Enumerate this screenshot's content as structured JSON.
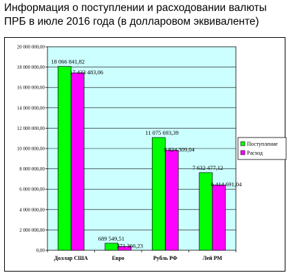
{
  "title_line1": "Информация о поступлении и расходовании валюты",
  "title_line2": "ПРБ в июле 2016 года (в долларовом эквиваленте)",
  "chart_data": {
    "type": "bar",
    "title": "Информация о поступлении и расходовании валюты ПРБ в июле 2016 года (в долларовом эквиваленте)",
    "categories": [
      "Доллар США",
      "Евро",
      "Рубль РФ",
      "Лей РМ"
    ],
    "series": [
      {
        "name": "Поступление",
        "color": "#00ff00",
        "values": [
          18066841.82,
          689549.51,
          11075693.39,
          7632477.12
        ],
        "labels": [
          "18 066 841,82",
          "689 549,51",
          "11 075 693,39",
          "7 632 477,12"
        ]
      },
      {
        "name": "Расход",
        "color": "#ff00ff",
        "values": [
          17433483.06,
          371366.23,
          9824309.04,
          6414691.04
        ],
        "labels": [
          "17 433 483,06",
          "371 366,23",
          "9 824 309,04",
          "6 414 691,04"
        ]
      }
    ],
    "ylim": [
      0,
      20000000
    ],
    "yticks": [
      0,
      2000000,
      4000000,
      6000000,
      8000000,
      10000000,
      12000000,
      14000000,
      16000000,
      18000000,
      20000000
    ],
    "ytick_labels": [
      "0,00",
      "2 000 000,00",
      "4 000 000,00",
      "6 000 000,00",
      "8 000 000,00",
      "10 000 000,00",
      "12 000 000,00",
      "14 000 000,00",
      "16 000 000,00",
      "18 000 000,00",
      "20 000 000,00"
    ],
    "grid": true,
    "legend_position": "right",
    "plot_background": "#ccffff"
  }
}
